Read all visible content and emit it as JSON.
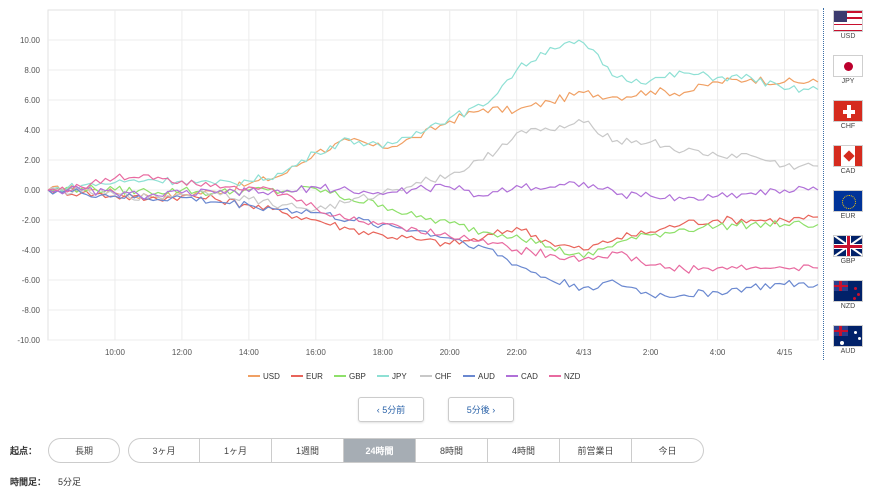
{
  "chart_data": {
    "type": "line",
    "y_ticks": [
      "10.00",
      "8.00",
      "6.00",
      "4.00",
      "2.00",
      "0.00",
      "-2.00",
      "-4.00",
      "-6.00",
      "-8.00",
      "-10.00"
    ],
    "ylim": [
      -10,
      12
    ],
    "x_ticks": [
      "10:00",
      "12:00",
      "14:00",
      "16:00",
      "18:00",
      "20:00",
      "22:00",
      "4/13",
      "2:00",
      "4:00",
      "4/15"
    ],
    "x_tick_positions": [
      2,
      4,
      6,
      8,
      10,
      12,
      14,
      16,
      18,
      20,
      22
    ],
    "xlim": [
      0,
      23
    ],
    "grid": true,
    "legend_position": "bottom",
    "series": [
      {
        "name": "USD",
        "color": "#f0a064",
        "points": [
          [
            0,
            0
          ],
          [
            1,
            0.1
          ],
          [
            2,
            -0.2
          ],
          [
            3,
            -0.4
          ],
          [
            4,
            -0.3
          ],
          [
            5,
            -0.1
          ],
          [
            6,
            0.4
          ],
          [
            7,
            1
          ],
          [
            8,
            2.5
          ],
          [
            9,
            3.3
          ],
          [
            10,
            2.8
          ],
          [
            11,
            3.5
          ],
          [
            12,
            4.6
          ],
          [
            13,
            5.4
          ],
          [
            14,
            5.3
          ],
          [
            15,
            5.9
          ],
          [
            16,
            6.5
          ],
          [
            17,
            6.2
          ],
          [
            18,
            6.6
          ],
          [
            19,
            6.5
          ],
          [
            20,
            7.2
          ],
          [
            21,
            7.4
          ],
          [
            22,
            7.2
          ],
          [
            23,
            7.2
          ]
        ]
      },
      {
        "name": "EUR",
        "color": "#e8645a",
        "points": [
          [
            0,
            0
          ],
          [
            1,
            -0.2
          ],
          [
            2,
            -0.4
          ],
          [
            3,
            -0.6
          ],
          [
            4,
            -0.4
          ],
          [
            5,
            -0.6
          ],
          [
            6,
            -1
          ],
          [
            7,
            -1.5
          ],
          [
            8,
            -2
          ],
          [
            9,
            -2.6
          ],
          [
            10,
            -3
          ],
          [
            11,
            -3.3
          ],
          [
            12,
            -3.6
          ],
          [
            13,
            -3.2
          ],
          [
            14,
            -2.5
          ],
          [
            15,
            -3.5
          ],
          [
            16,
            -4
          ],
          [
            17,
            -3.2
          ],
          [
            18,
            -2.8
          ],
          [
            19,
            -2.2
          ],
          [
            20,
            -2
          ],
          [
            21,
            -2
          ],
          [
            22,
            -2
          ],
          [
            23,
            -1.8
          ]
        ]
      },
      {
        "name": "GBP",
        "color": "#8ee06a",
        "points": [
          [
            0,
            0
          ],
          [
            1,
            0.1
          ],
          [
            2,
            0
          ],
          [
            3,
            -0.1
          ],
          [
            4,
            0
          ],
          [
            5,
            -0.2
          ],
          [
            6,
            0
          ],
          [
            7,
            -0.1
          ],
          [
            8,
            0.1
          ],
          [
            9,
            -0.6
          ],
          [
            10,
            -1
          ],
          [
            11,
            -1.8
          ],
          [
            12,
            -2.2
          ],
          [
            13,
            -2.8
          ],
          [
            14,
            -3
          ],
          [
            15,
            -3.8
          ],
          [
            16,
            -4.5
          ],
          [
            17,
            -3.5
          ],
          [
            18,
            -3
          ],
          [
            19,
            -2.6
          ],
          [
            20,
            -2.4
          ],
          [
            21,
            -2.3
          ],
          [
            22,
            -2.3
          ],
          [
            23,
            -2.3
          ]
        ]
      },
      {
        "name": "JPY",
        "color": "#8ee0d4",
        "points": [
          [
            0,
            0
          ],
          [
            1,
            0.3
          ],
          [
            2,
            0.5
          ],
          [
            3,
            0.7
          ],
          [
            4,
            0.6
          ],
          [
            5,
            0.4
          ],
          [
            6,
            0.6
          ],
          [
            7,
            1.1
          ],
          [
            8,
            2.5
          ],
          [
            9,
            3.4
          ],
          [
            10,
            2.8
          ],
          [
            11,
            3.9
          ],
          [
            12,
            4.8
          ],
          [
            13,
            5.6
          ],
          [
            14,
            8
          ],
          [
            15,
            9.5
          ],
          [
            16,
            9.8
          ],
          [
            17,
            7.5
          ],
          [
            18,
            7.3
          ],
          [
            19,
            7.8
          ],
          [
            20,
            7.5
          ],
          [
            21,
            7.5
          ],
          [
            22,
            6.7
          ],
          [
            23,
            6.7
          ]
        ]
      },
      {
        "name": "CHF",
        "color": "#c8c8c8",
        "points": [
          [
            0,
            0
          ],
          [
            1,
            -0.1
          ],
          [
            2,
            -0.3
          ],
          [
            3,
            -0.5
          ],
          [
            4,
            -0.3
          ],
          [
            5,
            -0.1
          ],
          [
            6,
            -0.6
          ],
          [
            7,
            -1
          ],
          [
            8,
            -1.3
          ],
          [
            9,
            -0.8
          ],
          [
            10,
            -0.2
          ],
          [
            11,
            0.5
          ],
          [
            12,
            1
          ],
          [
            13,
            2
          ],
          [
            14,
            3.8
          ],
          [
            15,
            4
          ],
          [
            16,
            4.5
          ],
          [
            17,
            3.3
          ],
          [
            18,
            3.2
          ],
          [
            19,
            2.6
          ],
          [
            20,
            2.3
          ],
          [
            21,
            2.3
          ],
          [
            22,
            1.6
          ],
          [
            23,
            1.6
          ]
        ]
      },
      {
        "name": "AUD",
        "color": "#6a88d0",
        "points": [
          [
            0,
            0
          ],
          [
            1,
            -0.2
          ],
          [
            2,
            -0.4
          ],
          [
            3,
            -0.6
          ],
          [
            4,
            -0.5
          ],
          [
            5,
            -0.8
          ],
          [
            6,
            -1
          ],
          [
            7,
            -1.3
          ],
          [
            8,
            -1.5
          ],
          [
            9,
            -2
          ],
          [
            10,
            -2.3
          ],
          [
            11,
            -2.7
          ],
          [
            12,
            -3.2
          ],
          [
            13,
            -3.8
          ],
          [
            14,
            -5
          ],
          [
            15,
            -6
          ],
          [
            16,
            -6.5
          ],
          [
            17,
            -6.2
          ],
          [
            18,
            -7
          ],
          [
            19,
            -7
          ],
          [
            20,
            -6.8
          ],
          [
            21,
            -6.5
          ],
          [
            22,
            -6.3
          ],
          [
            23,
            -6.3
          ]
        ]
      },
      {
        "name": "CAD",
        "color": "#b070d8",
        "points": [
          [
            0,
            0
          ],
          [
            1,
            0
          ],
          [
            2,
            -0.2
          ],
          [
            3,
            -0.4
          ],
          [
            4,
            -0.2
          ],
          [
            5,
            -0.2
          ],
          [
            6,
            -0.1
          ],
          [
            7,
            -0.2
          ],
          [
            8,
            0.2
          ],
          [
            9,
            0
          ],
          [
            10,
            -0.3
          ],
          [
            11,
            0.1
          ],
          [
            12,
            0.2
          ],
          [
            13,
            -0.4
          ],
          [
            14,
            0.3
          ],
          [
            15,
            0.2
          ],
          [
            16,
            0.5
          ],
          [
            17,
            -0.3
          ],
          [
            18,
            -0.4
          ],
          [
            19,
            -0.6
          ],
          [
            20,
            -0.4
          ],
          [
            21,
            -0.2
          ],
          [
            22,
            0
          ],
          [
            23,
            0
          ]
        ]
      },
      {
        "name": "NZD",
        "color": "#e86aa0",
        "points": [
          [
            0,
            0
          ],
          [
            1,
            0.2
          ],
          [
            2,
            0.8
          ],
          [
            3,
            1
          ],
          [
            4,
            0.6
          ],
          [
            5,
            0.4
          ],
          [
            6,
            0.2
          ],
          [
            7,
            -0.3
          ],
          [
            8,
            -1.2
          ],
          [
            9,
            -2
          ],
          [
            10,
            -2.2
          ],
          [
            11,
            -2.6
          ],
          [
            12,
            -3.1
          ],
          [
            13,
            -3.3
          ],
          [
            14,
            -4
          ],
          [
            15,
            -4.3
          ],
          [
            16,
            -4.6
          ],
          [
            17,
            -4.2
          ],
          [
            18,
            -5
          ],
          [
            19,
            -5.3
          ],
          [
            20,
            -5.2
          ],
          [
            21,
            -5.2
          ],
          [
            22,
            -5.2
          ],
          [
            23,
            -5.2
          ]
        ]
      }
    ]
  },
  "flags": [
    {
      "code": "USD",
      "icon": "us-flag-icon"
    },
    {
      "code": "JPY",
      "icon": "jp-flag-icon"
    },
    {
      "code": "CHF",
      "icon": "ch-flag-icon"
    },
    {
      "code": "CAD",
      "icon": "ca-flag-icon"
    },
    {
      "code": "EUR",
      "icon": "eu-flag-icon"
    },
    {
      "code": "GBP",
      "icon": "gb-flag-icon"
    },
    {
      "code": "NZD",
      "icon": "nz-flag-icon"
    },
    {
      "code": "AUD",
      "icon": "au-flag-icon"
    }
  ],
  "nav": {
    "prev_label": "‹ 5分前",
    "next_label": "5分後 ›",
    "accent": "#2a62a8"
  },
  "period": {
    "label": "起点：",
    "options": [
      "長期",
      "3ヶ月",
      "1ヶ月",
      "1週間",
      "24時間",
      "8時間",
      "4時間",
      "前営業日",
      "今日"
    ],
    "selected": "24時間"
  },
  "timeframe": {
    "label": "時間足：",
    "value": "5分足"
  }
}
